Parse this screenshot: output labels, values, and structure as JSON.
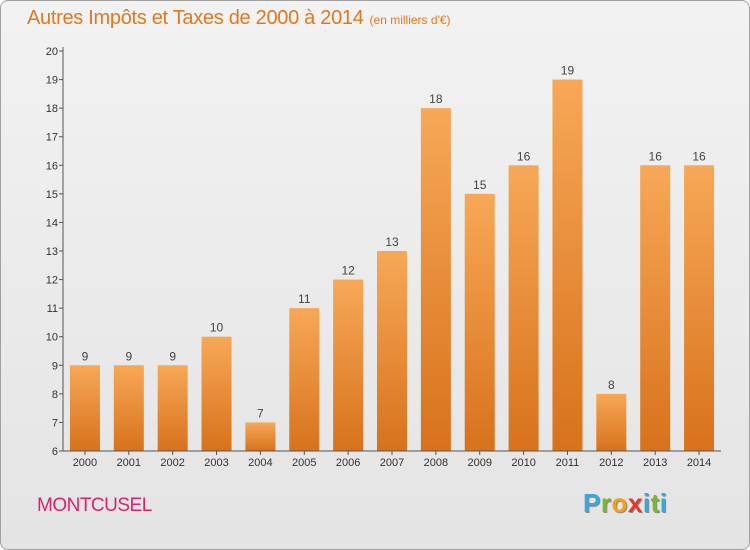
{
  "title": "Autres Impôts et Taxes de 2000 à 2014",
  "subtitle": "(en milliers d'€)",
  "commune": "MONTCUSEL",
  "logo": {
    "letters": [
      "P",
      "r",
      "o",
      "x",
      "i",
      "t",
      "i"
    ],
    "colors": [
      "#3aa6dc",
      "#7ab82e",
      "#f0a21a",
      "#e23a2a",
      "#3aa6dc",
      "#7ab82e",
      "#3aa6dc"
    ]
  },
  "colors": {
    "bar_light": "#f7a857",
    "bar_dark": "#d8721c",
    "title": "#e2781e",
    "commune": "#d8246e"
  },
  "chart_data": {
    "type": "bar",
    "title": "Autres Impôts et Taxes de 2000 à 2014",
    "subtitle": "(en milliers d'€)",
    "categories": [
      "2000",
      "2001",
      "2002",
      "2003",
      "2004",
      "2005",
      "2006",
      "2007",
      "2008",
      "2009",
      "2010",
      "2011",
      "2012",
      "2013",
      "2014"
    ],
    "values": [
      9,
      9,
      9,
      10,
      7,
      11,
      12,
      13,
      18,
      15,
      16,
      19,
      8,
      16,
      16
    ],
    "data_labels": [
      "9",
      "9",
      "9",
      "10",
      "7",
      "11",
      "12",
      "13",
      "18",
      "15",
      "16",
      "19",
      "8",
      "16",
      "16"
    ],
    "ylim": [
      6,
      20
    ],
    "yticks": [
      "6",
      "7",
      "8",
      "9",
      "10",
      "11",
      "12",
      "13",
      "14",
      "15",
      "16",
      "17",
      "18",
      "19",
      "20"
    ],
    "xlabel": "",
    "ylabel": "",
    "grid": false,
    "legend": "none"
  }
}
